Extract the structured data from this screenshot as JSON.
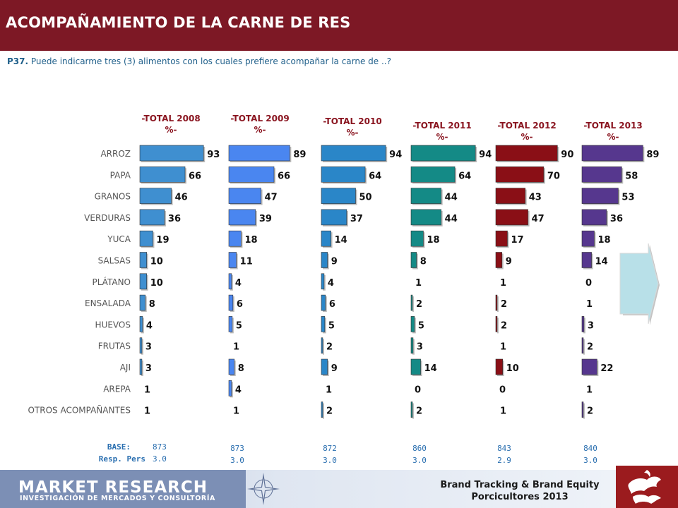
{
  "header": {
    "title": "ACOMPAÑAMIENTO DE LA CARNE DE RES",
    "question_code": "P37.",
    "question_text": "Puede indicarme tres (3) alimentos con los cuales prefiere acompañar la carne de ..?"
  },
  "chart_data": {
    "type": "bar",
    "orientation": "horizontal",
    "unit": "%",
    "categories": [
      "ARROZ",
      "PAPA",
      "GRANOS",
      "VERDURAS",
      "YUCA",
      "SALSAS",
      "PLÁTANO",
      "ENSALADA",
      "HUEVOS",
      "FRUTAS",
      "AJI",
      "AREPA",
      "OTROS ACOMPAÑANTES"
    ],
    "series": [
      {
        "name": "-TOTAL 2008 %-",
        "color": "#3f8fd0",
        "values": [
          93,
          66,
          46,
          36,
          19,
          10,
          10,
          8,
          4,
          3,
          3,
          1,
          1
        ],
        "base": "873",
        "resp_pers": "3.0"
      },
      {
        "name": "-TOTAL 2009 %-",
        "color": "#4a86f0",
        "values": [
          89,
          66,
          47,
          39,
          18,
          11,
          4,
          6,
          5,
          1,
          8,
          4,
          1
        ],
        "base": "873",
        "resp_pers": "3.0"
      },
      {
        "name": "-TOTAL 2010 %-",
        "color": "#2a86c8",
        "values": [
          94,
          64,
          50,
          37,
          14,
          9,
          4,
          6,
          5,
          2,
          9,
          1,
          2
        ],
        "base": "872",
        "resp_pers": "3.0"
      },
      {
        "name": "-TOTAL 2011 %-",
        "color": "#148a86",
        "values": [
          94,
          64,
          44,
          44,
          18,
          8,
          1,
          2,
          5,
          3,
          14,
          0,
          2
        ],
        "base": "860",
        "resp_pers": "3.0"
      },
      {
        "name": "-TOTAL 2012 %-",
        "color": "#8a0f16",
        "values": [
          90,
          70,
          43,
          47,
          17,
          9,
          1,
          2,
          2,
          1,
          10,
          0,
          1
        ],
        "base": "843",
        "resp_pers": "2.9"
      },
      {
        "name": "-TOTAL 2013 %-",
        "color": "#56378e",
        "values": [
          89,
          58,
          53,
          36,
          18,
          14,
          0,
          1,
          3,
          2,
          22,
          1,
          2
        ],
        "base": "840",
        "resp_pers": "3.0"
      }
    ],
    "base_label": "BASE:",
    "resp_label": "Resp. Pers"
  },
  "footer": {
    "logo_main": "MARKET RESEARCH",
    "logo_sub": "INVESTIGACIÓN DE MERCADOS Y CONSULTORÍA",
    "brand_line1": "Brand Tracking & Brand Equity",
    "brand_line2": "Porcicultores 2013",
    "compass_icon": "compass-icon",
    "pig-logo": "pig-logo-icon"
  }
}
